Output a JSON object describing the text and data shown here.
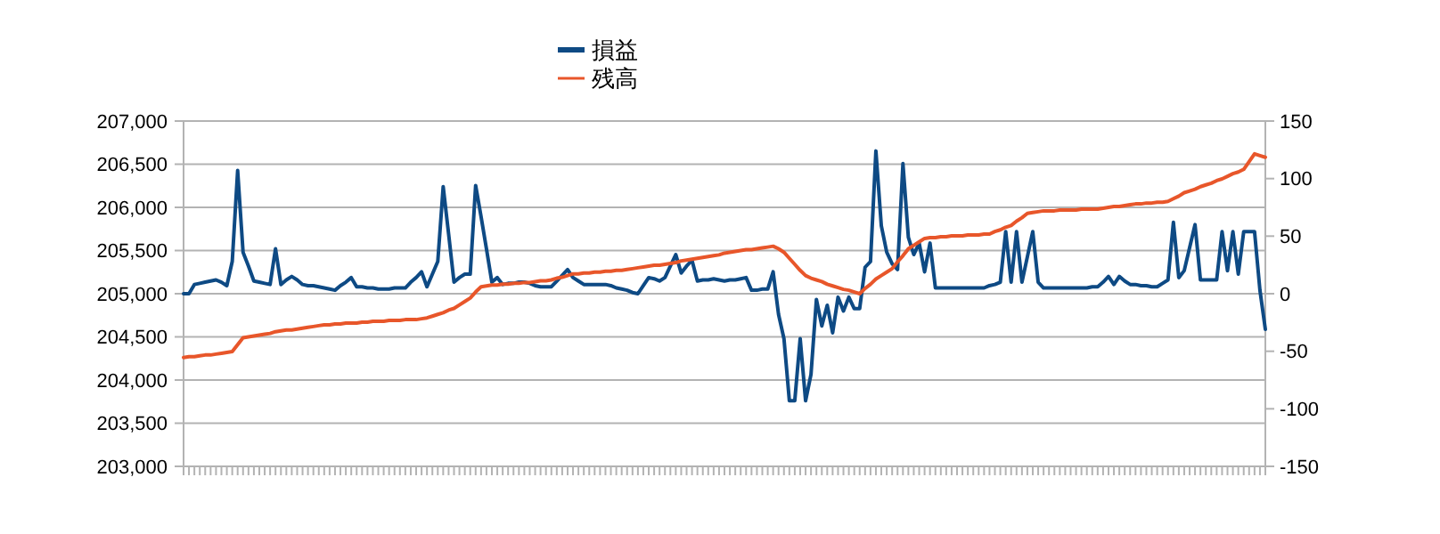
{
  "chart_data": {
    "type": "line",
    "legend": "top",
    "grid": "y",
    "marker": "none",
    "line_style": "solid",
    "categories": [
      null,
      null,
      null,
      null,
      null,
      null,
      null,
      null,
      null,
      null,
      null,
      null,
      null,
      null,
      null,
      null,
      null,
      null,
      null,
      null,
      null,
      null,
      null,
      null,
      null,
      null,
      null,
      null,
      null,
      null,
      null,
      null,
      null,
      null,
      null,
      null,
      null,
      null,
      null,
      null,
      null,
      null,
      null,
      null,
      null,
      null,
      null,
      null,
      null,
      null,
      null,
      null,
      null,
      null,
      null,
      null,
      null,
      null,
      null,
      null,
      null,
      null,
      null,
      null,
      null,
      null,
      null,
      null,
      null,
      null,
      null,
      null,
      null,
      null,
      null,
      null,
      null,
      null,
      null,
      null,
      null,
      null,
      null,
      null,
      null,
      null,
      null,
      null,
      null,
      null,
      null,
      null,
      null,
      null,
      null,
      null,
      null,
      null,
      null,
      null,
      null,
      null,
      null,
      null,
      null,
      null,
      null,
      null,
      null,
      null,
      null,
      null,
      null,
      null,
      null,
      null,
      null,
      null,
      null,
      null,
      null,
      null,
      null,
      null,
      null,
      null,
      null,
      null,
      null,
      null,
      null,
      null,
      null,
      null,
      null,
      null,
      null,
      null,
      null,
      null,
      null,
      null,
      null,
      null,
      null,
      null,
      null,
      null,
      null,
      null,
      null,
      null,
      null,
      null,
      null,
      null,
      null,
      null,
      null,
      null,
      null,
      null,
      null,
      null,
      null,
      null,
      null,
      null,
      null,
      null,
      null,
      null,
      null,
      null,
      null,
      null,
      null,
      null,
      null,
      null,
      null,
      null,
      null,
      null,
      null,
      null,
      null,
      null,
      null,
      null,
      null,
      null,
      null,
      null,
      null,
      null,
      null,
      null,
      null,
      null,
      null
    ],
    "ylim": [
      203000,
      207000
    ],
    "yticks": [
      {
        "value": 203000,
        "label": "203,000"
      },
      {
        "value": 203500,
        "label": "203,500"
      },
      {
        "value": 204000,
        "label": "204,000"
      },
      {
        "value": 204500,
        "label": "204,500"
      },
      {
        "value": 205000,
        "label": "205,000"
      },
      {
        "value": 205500,
        "label": "205,500"
      },
      {
        "value": 206000,
        "label": "206,000"
      },
      {
        "value": 206500,
        "label": "206,500"
      },
      {
        "value": 207000,
        "label": "207,000"
      }
    ],
    "y2lim": [
      -150,
      150
    ],
    "y2ticks": [
      -150,
      -100,
      -50,
      0,
      50,
      100,
      150
    ],
    "series": [
      {
        "name": "損益",
        "color": "#0e4a84",
        "axis": "y2",
        "values": [
          0,
          0,
          8,
          9,
          10,
          11,
          12,
          10,
          7,
          28,
          107,
          36,
          24,
          11,
          10,
          9,
          8,
          39,
          8,
          12,
          15,
          12,
          8,
          7,
          7,
          6,
          5,
          4,
          3,
          7,
          10,
          14,
          6,
          6,
          5,
          5,
          4,
          4,
          4,
          5,
          5,
          5,
          10,
          14,
          19,
          6,
          17,
          28,
          93,
          52,
          10,
          14,
          17,
          17,
          94,
          67,
          39,
          10,
          14,
          8,
          9,
          9,
          10,
          10,
          9,
          7,
          6,
          6,
          6,
          11,
          16,
          21,
          14,
          11,
          8,
          8,
          8,
          8,
          8,
          7,
          5,
          4,
          3,
          1,
          0,
          7,
          14,
          13,
          11,
          14,
          24,
          34,
          18,
          24,
          29,
          11,
          12,
          12,
          13,
          12,
          11,
          12,
          12,
          13,
          14,
          3,
          3,
          4,
          4,
          19,
          -18,
          -39,
          -93,
          -93,
          -39,
          -93,
          -70,
          -5,
          -28,
          -10,
          -34,
          -3,
          -15,
          -3,
          -13,
          -13,
          23,
          28,
          124,
          59,
          36,
          26,
          21,
          113,
          49,
          34,
          44,
          19,
          44,
          5,
          5,
          5,
          5,
          5,
          5,
          5,
          5,
          5,
          5,
          7,
          8,
          10,
          54,
          10,
          54,
          10,
          32,
          54,
          10,
          5,
          5,
          5,
          5,
          5,
          5,
          5,
          5,
          5,
          6,
          6,
          10,
          15,
          8,
          15,
          11,
          8,
          8,
          7,
          7,
          6,
          6,
          9,
          12,
          62,
          14,
          20,
          40,
          60,
          12,
          12,
          12,
          12,
          54,
          20,
          54,
          17,
          54,
          54,
          54,
          3,
          -31
        ]
      },
      {
        "name": "残高",
        "color": "#e8562a",
        "values": [
          204260,
          204270,
          204270,
          204280,
          204290,
          204290,
          204300,
          204310,
          204320,
          204330,
          204410,
          204490,
          204500,
          204510,
          204520,
          204530,
          204540,
          204560,
          204570,
          204580,
          204580,
          204590,
          204600,
          204610,
          204620,
          204630,
          204640,
          204640,
          204650,
          204650,
          204660,
          204660,
          204660,
          204670,
          204670,
          204680,
          204680,
          204680,
          204690,
          204690,
          204690,
          204700,
          204700,
          204700,
          204710,
          204720,
          204740,
          204760,
          204780,
          204810,
          204830,
          204870,
          204910,
          204950,
          205020,
          205080,
          205090,
          205100,
          205100,
          205110,
          205110,
          205120,
          205120,
          205130,
          205130,
          205140,
          205150,
          205150,
          205160,
          205180,
          205190,
          205210,
          205230,
          205230,
          205240,
          205240,
          205250,
          205250,
          205260,
          205260,
          205270,
          205270,
          205280,
          205290,
          205300,
          205310,
          205320,
          205330,
          205330,
          205340,
          205350,
          205360,
          205380,
          205390,
          205400,
          205410,
          205420,
          205430,
          205440,
          205450,
          205470,
          205480,
          205490,
          205500,
          205510,
          205510,
          205520,
          205530,
          205540,
          205550,
          205520,
          205480,
          205410,
          205340,
          205270,
          205210,
          205180,
          205160,
          205140,
          205110,
          205090,
          205070,
          205050,
          205040,
          205020,
          205000,
          205060,
          205110,
          205170,
          205210,
          205250,
          205290,
          205370,
          205440,
          205520,
          205560,
          205600,
          205640,
          205650,
          205650,
          205660,
          205660,
          205670,
          205670,
          205670,
          205680,
          205680,
          205680,
          205690,
          205690,
          205720,
          205740,
          205770,
          205790,
          205840,
          205880,
          205930,
          205940,
          205950,
          205960,
          205960,
          205960,
          205970,
          205970,
          205970,
          205970,
          205980,
          205980,
          205980,
          205980,
          205990,
          206000,
          206010,
          206010,
          206020,
          206030,
          206040,
          206040,
          206050,
          206050,
          206060,
          206060,
          206070,
          206100,
          206130,
          206170,
          206190,
          206210,
          206240,
          206260,
          206280,
          206310,
          206330,
          206360,
          206390,
          206410,
          206440,
          206530,
          206620,
          206600,
          206580
        ]
      }
    ]
  }
}
